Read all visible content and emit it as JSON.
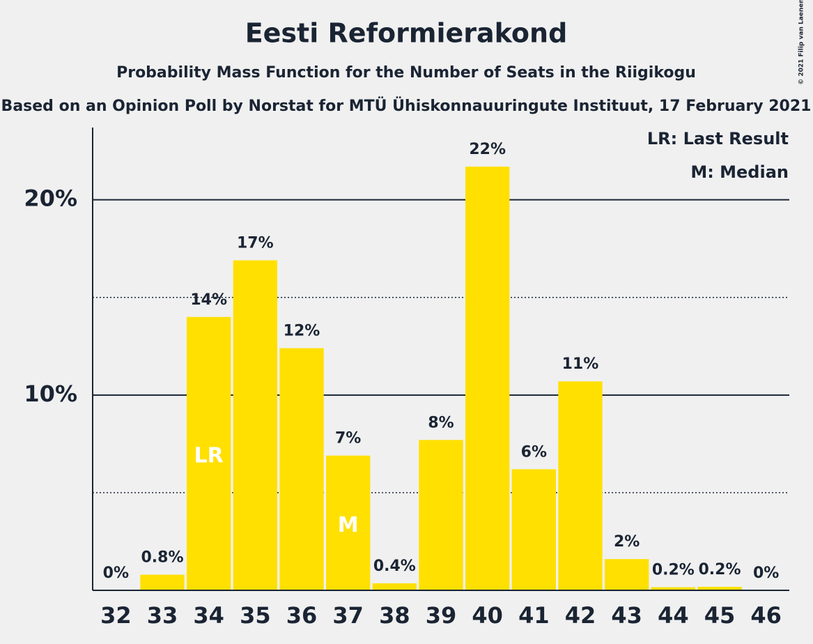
{
  "chart_data": {
    "type": "bar",
    "title": "Eesti Reformierakond",
    "subtitle": "Probability Mass Function for the Number of Seats in the Riigikogu",
    "caption": "Based on an Opinion Poll by Norstat for MTÜ Ühiskonnauuringute Instituut, 17 February 2021",
    "copyright": "© 2021 Filip van Laenen",
    "categories": [
      "32",
      "33",
      "34",
      "35",
      "36",
      "37",
      "38",
      "39",
      "40",
      "41",
      "42",
      "43",
      "44",
      "45",
      "46"
    ],
    "values": [
      0,
      0.8,
      14,
      16.9,
      12.4,
      6.9,
      0.36,
      7.7,
      21.7,
      6.2,
      10.7,
      1.6,
      0.16,
      0.18,
      0
    ],
    "value_labels": [
      "0%",
      "0.8%",
      "14%",
      "17%",
      "12%",
      "7%",
      "0.4%",
      "8%",
      "22%",
      "6%",
      "11%",
      "2%",
      "0.2%",
      "0.2%",
      "0%"
    ],
    "bar_annotations": [
      null,
      null,
      "LR",
      null,
      null,
      "M",
      null,
      null,
      null,
      null,
      null,
      null,
      null,
      null,
      null
    ],
    "legend_notes": [
      "LR: Last Result",
      "M: Median"
    ],
    "color": "#ffe000",
    "ylim": [
      0,
      23.7
    ],
    "yticks": [
      {
        "value": 10,
        "label": "10%"
      },
      {
        "value": 20,
        "label": "20%"
      }
    ],
    "minor_gridlines": [
      5,
      15
    ],
    "grid": true
  }
}
